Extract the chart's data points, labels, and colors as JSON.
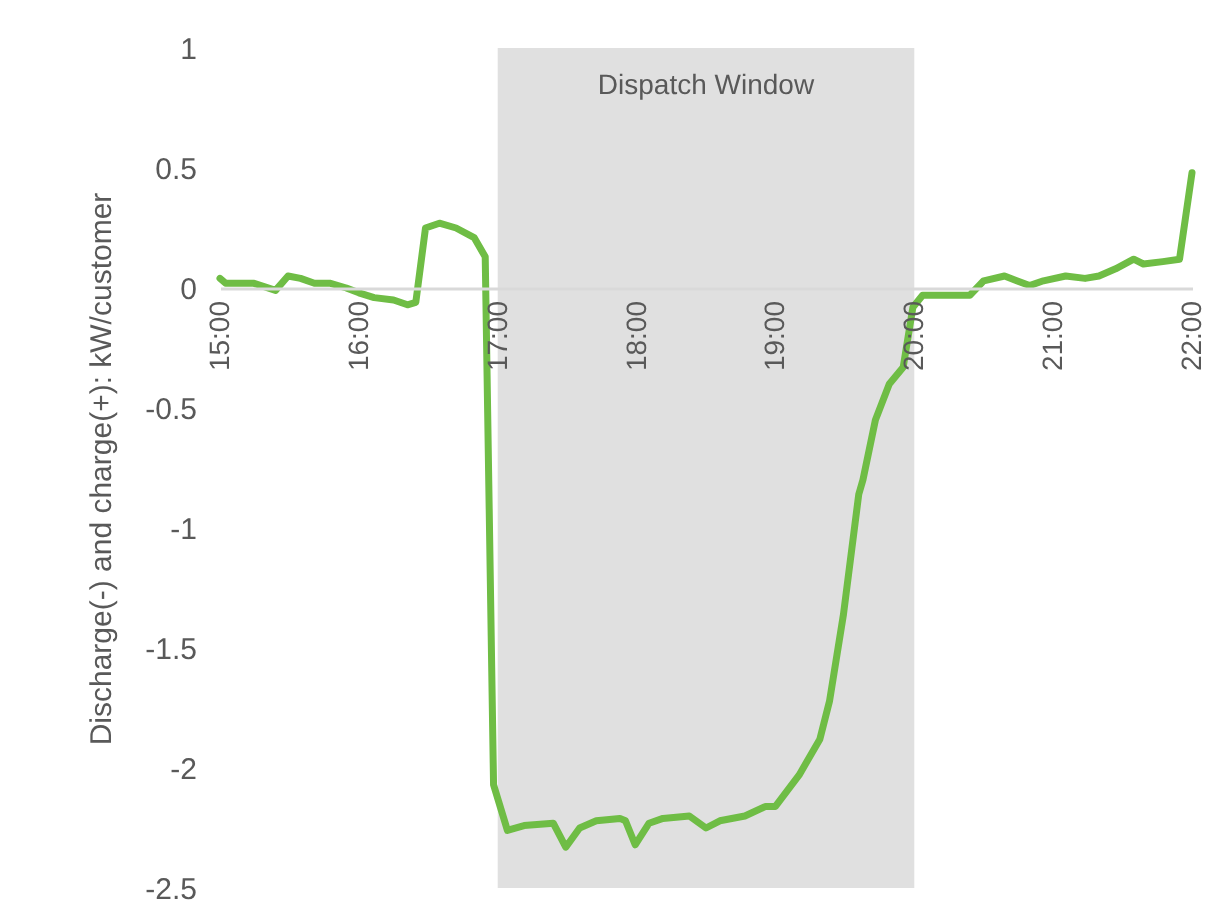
{
  "chart_data": {
    "type": "line",
    "ylabel": "Discharge(-) and charge(+): kW/customer",
    "x": [
      15.0,
      15.04,
      15.14,
      15.24,
      15.4,
      15.49,
      15.58,
      15.68,
      15.79,
      15.91,
      16.0,
      16.11,
      16.25,
      16.35,
      16.41,
      16.48,
      16.58,
      16.7,
      16.83,
      16.91,
      16.97,
      17.07,
      17.19,
      17.4,
      17.49,
      17.59,
      17.71,
      17.88,
      17.92,
      17.99,
      18.09,
      18.19,
      18.38,
      18.5,
      18.6,
      18.78,
      18.93,
      19.0,
      19.17,
      19.32,
      19.39,
      19.49,
      19.6,
      19.63,
      19.72,
      19.82,
      19.92,
      19.99,
      20.06,
      20.32,
      20.4,
      20.5,
      20.65,
      20.83,
      20.93,
      21.09,
      21.23,
      21.33,
      21.45,
      21.58,
      21.65,
      21.79,
      21.91,
      22.0
    ],
    "series": [
      {
        "color": "#6fbd45",
        "values": [
          0.04,
          0.02,
          0.02,
          0.02,
          -0.01,
          0.05,
          0.04,
          0.02,
          0.02,
          0,
          -0.02,
          -0.04,
          -0.05,
          -0.07,
          -0.06,
          0.25,
          0.27,
          0.25,
          0.21,
          0.13,
          -2.07,
          -2.26,
          -2.24,
          -2.23,
          -2.33,
          -2.25,
          -2.22,
          -2.21,
          -2.22,
          -2.32,
          -2.23,
          -2.21,
          -2.2,
          -2.25,
          -2.22,
          -2.2,
          -2.16,
          -2.16,
          -2.03,
          -1.88,
          -1.72,
          -1.36,
          -0.86,
          -0.8,
          -0.55,
          -0.4,
          -0.33,
          -0.08,
          -0.03,
          -0.03,
          -0.03,
          0.03,
          0.05,
          0.01,
          0.03,
          0.05,
          0.04,
          0.05,
          0.08,
          0.12,
          0.1,
          0.11,
          0.12,
          0.48
        ]
      }
    ],
    "xlim": [
      15,
      22
    ],
    "xticks": [
      {
        "value": 15,
        "label": "15:00"
      },
      {
        "value": 16,
        "label": "16:00"
      },
      {
        "value": 17,
        "label": "17:00"
      },
      {
        "value": 18,
        "label": "18:00"
      },
      {
        "value": 19,
        "label": "19:00"
      },
      {
        "value": 20,
        "label": "20:00"
      },
      {
        "value": 21,
        "label": "21:00"
      },
      {
        "value": 22,
        "label": "22:00"
      }
    ],
    "ylim": [
      -2.5,
      1
    ],
    "yticks": [
      -2.5,
      -2,
      -1.5,
      -1,
      -0.5,
      0,
      0.5,
      1
    ],
    "bands": [
      {
        "axis": "x",
        "from": 17,
        "to": 20,
        "label": "Dispatch Window",
        "color": "#e0e0e0"
      }
    ],
    "grid": false,
    "marker": "none",
    "line_style": "solid"
  }
}
